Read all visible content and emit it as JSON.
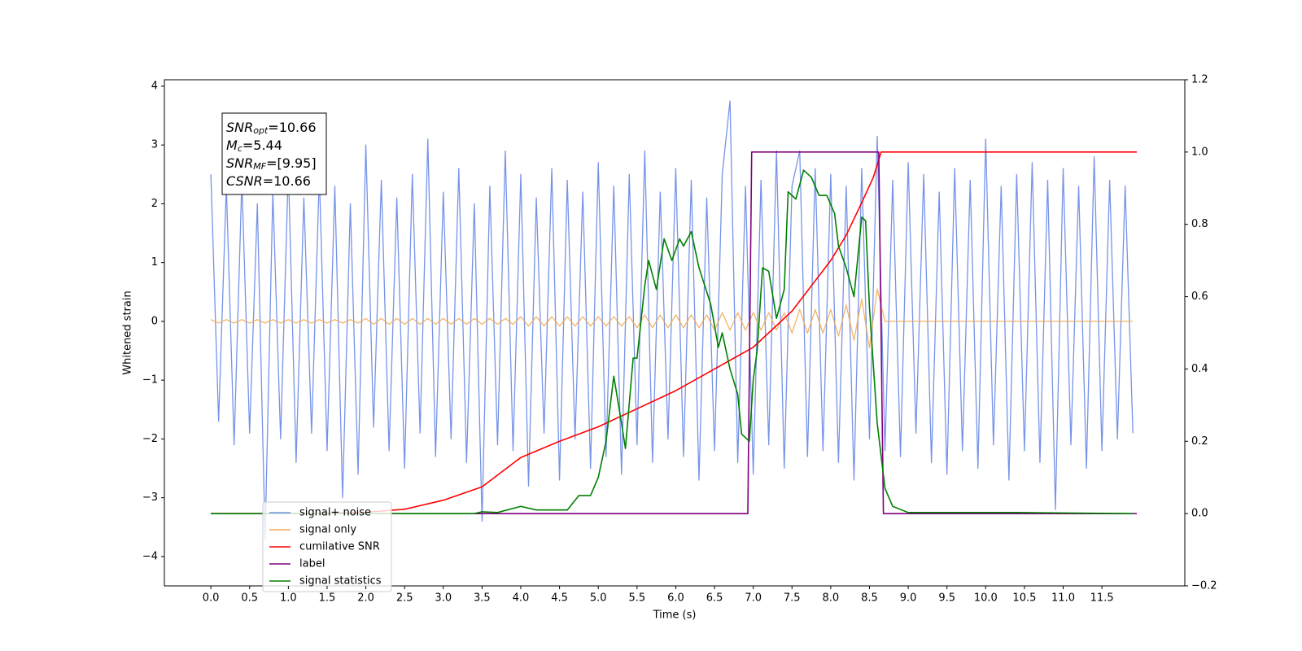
{
  "chart_data": {
    "type": "line",
    "x_label": "Time (s)",
    "y_label": "Whitened strain",
    "xlim": [
      -0.6,
      12.57
    ],
    "ylim": [
      -4.5,
      4.11
    ],
    "y2lim": [
      -0.2,
      1.2
    ],
    "xticks": [
      {
        "value": 0,
        "label": "0.0"
      },
      0.5,
      {
        "value": 1,
        "label": "1.0"
      },
      1.5,
      {
        "value": 2,
        "label": "2.0"
      },
      2.5,
      {
        "value": 3,
        "label": "3.0"
      },
      3.5,
      {
        "value": 4,
        "label": "4.0"
      },
      4.5,
      {
        "value": 5,
        "label": "5.0"
      },
      5.5,
      {
        "value": 6,
        "label": "6.0"
      },
      6.5,
      {
        "value": 7,
        "label": "7.0"
      },
      7.5,
      {
        "value": 8,
        "label": "8.0"
      },
      8.5,
      {
        "value": 9,
        "label": "9.0"
      },
      9.5,
      {
        "value": 10,
        "label": "10.0"
      },
      10.5,
      {
        "value": 11,
        "label": "11.0"
      },
      11.5
    ],
    "yticks": [
      {
        "value": -4,
        "label": "−4"
      },
      {
        "value": -3,
        "label": "−3"
      },
      {
        "value": -2,
        "label": "−2"
      },
      {
        "value": -1,
        "label": "−1"
      },
      0,
      1,
      2,
      3,
      4
    ],
    "y2ticks": [
      {
        "value": -0.2,
        "label": "−0.2"
      },
      {
        "value": 0,
        "label": "0.0"
      },
      0.2,
      0.4,
      0.6,
      0.8,
      {
        "value": 1,
        "label": "1.0"
      },
      1.2
    ],
    "legend": "lower left",
    "annotation": [
      {
        "name": "SNR",
        "sub": "opt",
        "text": "=10.66"
      },
      {
        "name": "M",
        "sub": "c",
        "text": "=5.44"
      },
      {
        "name": "SNR",
        "sub": "MF",
        "text": "=[9.95]"
      },
      {
        "name": "CSNR",
        "text": "=10.66"
      }
    ],
    "x": [
      0.0,
      0.1,
      0.2,
      0.3,
      0.4,
      0.5,
      0.6,
      0.7,
      0.8,
      0.9,
      1.0,
      1.1,
      1.2,
      1.3,
      1.4,
      1.5,
      1.6,
      1.7,
      1.8,
      1.9,
      2.0,
      2.1,
      2.2,
      2.3,
      2.4,
      2.5,
      2.6,
      2.7,
      2.8,
      2.9,
      3.0,
      3.1,
      3.2,
      3.3,
      3.4,
      3.5,
      3.6,
      3.7,
      3.8,
      3.9,
      4.0,
      4.1,
      4.2,
      4.3,
      4.4,
      4.5,
      4.6,
      4.7,
      4.8,
      4.9,
      5.0,
      5.1,
      5.2,
      5.3,
      5.4,
      5.5,
      5.6,
      5.7,
      5.8,
      5.9,
      6.0,
      6.1,
      6.2,
      6.3,
      6.4,
      6.5,
      6.6,
      6.7,
      6.8,
      6.9,
      7.0,
      7.1,
      7.2,
      7.3,
      7.4,
      7.5,
      7.6,
      7.7,
      7.8,
      7.9,
      8.0,
      8.1,
      8.2,
      8.3,
      8.4,
      8.5,
      8.6,
      8.7,
      8.8,
      8.9,
      9.0,
      9.1,
      9.2,
      9.3,
      9.4,
      9.5,
      9.6,
      9.7,
      9.8,
      9.9,
      10.0,
      10.1,
      10.2,
      10.3,
      10.4,
      10.5,
      10.6,
      10.7,
      10.8,
      10.9,
      11.0,
      11.1,
      11.2,
      11.3,
      11.4,
      11.5,
      11.6,
      11.7,
      11.8,
      11.9
    ],
    "series": [
      {
        "name": "signal+ noise",
        "color": "#7693e8",
        "values": [
          2.5,
          -1.7,
          2.3,
          -2.1,
          2.4,
          -1.9,
          2.0,
          -3.7,
          2.2,
          -2.0,
          2.6,
          -2.4,
          2.1,
          -1.9,
          2.5,
          -2.2,
          2.3,
          -3.0,
          2.0,
          -2.6,
          3.0,
          -1.8,
          2.4,
          -2.2,
          2.1,
          -2.5,
          2.5,
          -1.9,
          3.1,
          -2.3,
          2.2,
          -2.0,
          2.6,
          -2.4,
          2.0,
          -3.4,
          2.3,
          -2.1,
          2.9,
          -2.2,
          2.5,
          -2.8,
          2.1,
          -1.9,
          2.6,
          -2.7,
          2.4,
          -2.0,
          2.2,
          -2.5,
          2.7,
          -2.3,
          2.3,
          -2.6,
          2.5,
          -2.1,
          2.9,
          -2.4,
          2.2,
          -2.0,
          2.6,
          -2.3,
          2.4,
          -2.7,
          2.1,
          -2.2,
          2.5,
          3.75,
          -2.4,
          2.3,
          -2.6,
          2.4,
          -2.1,
          2.9,
          -2.5,
          2.3,
          2.9,
          -2.3,
          2.6,
          -2.2,
          2.5,
          -2.4,
          2.3,
          -2.7,
          2.6,
          -2.0,
          3.15,
          -2.2,
          2.4,
          -2.3,
          2.7,
          -1.9,
          2.5,
          -2.4,
          2.2,
          -2.6,
          2.6,
          -2.2,
          2.4,
          -2.5,
          3.1,
          -2.1,
          2.3,
          -2.7,
          2.5,
          -2.2,
          2.7,
          -2.4,
          2.4,
          -3.2,
          2.6,
          -2.1,
          2.3,
          -2.5,
          2.8,
          -2.2,
          2.4,
          -2.0,
          2.3,
          -1.9
        ]
      },
      {
        "name": "signal only",
        "color": "#f0a850",
        "values": [
          0.03,
          -0.03,
          0.03,
          -0.03,
          0.03,
          -0.03,
          0.03,
          -0.03,
          0.03,
          -0.03,
          0.03,
          -0.03,
          0.03,
          -0.03,
          0.03,
          -0.03,
          0.03,
          -0.03,
          0.03,
          -0.03,
          0.05,
          -0.05,
          0.05,
          -0.05,
          0.05,
          -0.05,
          0.05,
          -0.05,
          0.05,
          -0.05,
          0.05,
          -0.05,
          0.05,
          -0.05,
          0.05,
          -0.05,
          0.05,
          -0.05,
          0.05,
          -0.05,
          0.08,
          -0.08,
          0.08,
          -0.08,
          0.08,
          -0.08,
          0.08,
          -0.08,
          0.08,
          -0.08,
          0.08,
          -0.08,
          0.08,
          -0.08,
          0.08,
          -0.11,
          0.11,
          -0.11,
          0.11,
          -0.11,
          0.11,
          -0.11,
          0.11,
          -0.11,
          0.11,
          -0.15,
          0.15,
          -0.15,
          0.15,
          -0.15,
          0.15,
          -0.15,
          0.15,
          -0.15,
          0.15,
          -0.2,
          0.2,
          -0.2,
          0.2,
          -0.2,
          0.2,
          -0.25,
          0.28,
          -0.32,
          0.38,
          -0.45,
          0.55,
          0,
          0,
          0,
          0,
          0,
          0,
          0,
          0,
          0,
          0,
          0,
          0,
          0,
          0,
          0,
          0,
          0,
          0,
          0,
          0,
          0,
          0,
          0,
          0,
          0,
          0,
          0,
          0,
          0,
          0,
          0,
          0,
          0
        ]
      },
      {
        "name": "cumilative SNR",
        "color": "#ff0000",
        "axis": "y2",
        "x": [
          0,
          1,
          1.5,
          2,
          2.5,
          3,
          3.5,
          4,
          4.5,
          5,
          5.5,
          6,
          6.5,
          7,
          7.5,
          8,
          8.2,
          8.4,
          8.55,
          8.65,
          8.7,
          11.95
        ],
        "values": [
          0,
          0,
          0.001,
          0.004,
          0.012,
          0.037,
          0.074,
          0.155,
          0.2,
          0.24,
          0.29,
          0.34,
          0.4,
          0.46,
          0.56,
          0.7,
          0.77,
          0.86,
          0.93,
          1.0,
          1.0,
          1.0
        ]
      },
      {
        "name": "label",
        "color": "#800080",
        "axis": "y2",
        "x": [
          0,
          6.93,
          6.98,
          8.62,
          8.68,
          11.95
        ],
        "values": [
          0,
          0,
          1,
          1,
          0,
          0
        ]
      },
      {
        "name": "signal statistics",
        "color": "#008000",
        "axis": "y2",
        "x": [
          0,
          3.4,
          3.5,
          3.7,
          4.0,
          4.2,
          4.6,
          4.75,
          4.9,
          5.0,
          5.1,
          5.2,
          5.3,
          5.35,
          5.45,
          5.5,
          5.6,
          5.65,
          5.75,
          5.85,
          5.95,
          6.05,
          6.1,
          6.2,
          6.3,
          6.45,
          6.55,
          6.6,
          6.7,
          6.8,
          6.85,
          6.95,
          7.0,
          7.05,
          7.12,
          7.2,
          7.3,
          7.4,
          7.45,
          7.55,
          7.65,
          7.75,
          7.85,
          7.95,
          8.05,
          8.1,
          8.2,
          8.3,
          8.4,
          8.45,
          8.5,
          8.6,
          8.7,
          8.8,
          9.0,
          10.4,
          11.9
        ],
        "values": [
          0,
          0,
          0.005,
          0.003,
          0.02,
          0.01,
          0.01,
          0.05,
          0.05,
          0.1,
          0.2,
          0.38,
          0.25,
          0.18,
          0.43,
          0.43,
          0.63,
          0.7,
          0.62,
          0.76,
          0.7,
          0.76,
          0.74,
          0.78,
          0.68,
          0.58,
          0.46,
          0.5,
          0.4,
          0.33,
          0.22,
          0.2,
          0.37,
          0.45,
          0.68,
          0.67,
          0.54,
          0.62,
          0.89,
          0.87,
          0.95,
          0.93,
          0.88,
          0.88,
          0.83,
          0.74,
          0.68,
          0.6,
          0.82,
          0.81,
          0.57,
          0.25,
          0.07,
          0.02,
          0.003,
          0.003,
          0
        ]
      }
    ]
  }
}
